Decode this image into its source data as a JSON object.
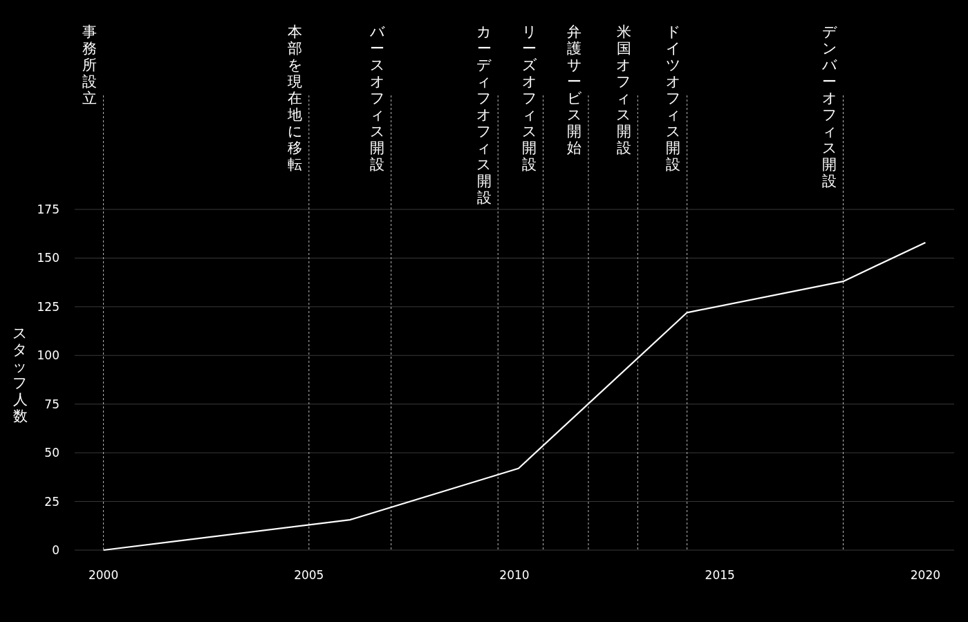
{
  "chart_data": {
    "type": "line",
    "ylabel": "スタッフ人数",
    "x": [
      2000,
      2006,
      2010.1,
      2014.2,
      2018,
      2020
    ],
    "values": [
      0,
      15.6,
      42,
      122,
      138,
      158
    ],
    "color": "#ffffff",
    "line_style": "solid",
    "marker": "none",
    "xlim": [
      1999.3,
      2020.7
    ],
    "xticks": [
      2000,
      2005,
      2010,
      2015,
      2020
    ],
    "ylim": [
      0,
      175
    ],
    "yticks": [
      0,
      25,
      50,
      75,
      100,
      125,
      150,
      175
    ],
    "grid": "y",
    "ref_lines": [
      {
        "axis": "x",
        "value": 2000,
        "label": "事務所設立",
        "line_style": "dashed"
      },
      {
        "axis": "x",
        "value": 2005,
        "label": "本部を現在地に移転",
        "line_style": "dashed"
      },
      {
        "axis": "x",
        "value": 2007,
        "label": "バースオフィス開設",
        "line_style": "dashed"
      },
      {
        "axis": "x",
        "value": 2009.6,
        "label": "カーディフオフィス開設",
        "line_style": "dashed"
      },
      {
        "axis": "x",
        "value": 2010.7,
        "label": "リーズオフィス開設",
        "line_style": "dashed"
      },
      {
        "axis": "x",
        "value": 2011.8,
        "label": "弁護サービス開始",
        "line_style": "dashed"
      },
      {
        "axis": "x",
        "value": 2013,
        "label": "米国オフィス開設",
        "line_style": "dashed"
      },
      {
        "axis": "x",
        "value": 2014.2,
        "label": "ドイツオフィス開設",
        "line_style": "dashed"
      },
      {
        "axis": "x",
        "value": 2018,
        "label": "デンバーオフィス開設",
        "line_style": "dashed"
      }
    ]
  }
}
